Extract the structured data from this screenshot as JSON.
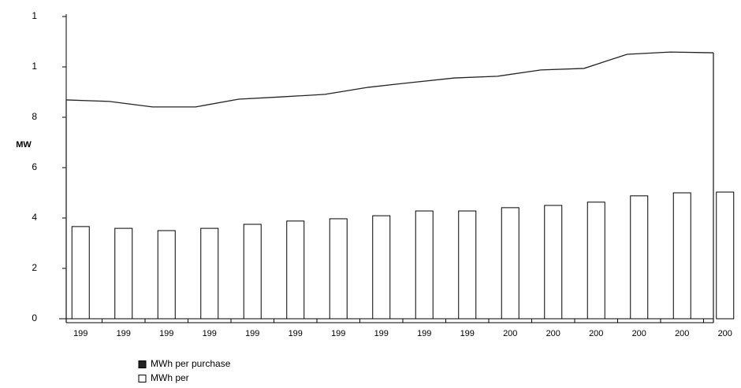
{
  "chart_data": {
    "type": "combo",
    "y_label": "MW",
    "categories": [
      "199",
      "199",
      "199",
      "199",
      "199",
      "199",
      "199",
      "199",
      "199",
      "199",
      "200",
      "200",
      "200",
      "200",
      "200",
      "200"
    ],
    "series": [
      {
        "name": "MWh per purchase",
        "type": "line",
        "color": "#222222",
        "values": [
          8.69,
          8.63,
          8.41,
          8.41,
          8.72,
          8.81,
          8.91,
          9.19,
          9.38,
          9.56,
          9.63,
          9.88,
          9.94,
          10.5,
          10.59,
          10.56
        ]
      },
      {
        "name": "MWh per",
        "type": "bar",
        "color": "#ffffff",
        "values": [
          3.66,
          3.59,
          3.5,
          3.59,
          3.75,
          3.88,
          3.97,
          4.09,
          4.28,
          4.28,
          4.41,
          4.5,
          4.63,
          4.88,
          5.0,
          5.03
        ]
      }
    ],
    "ylim": [
      0,
      12
    ],
    "yticks": [
      0,
      2,
      4,
      6,
      8,
      {
        "value": 10,
        "label": "1"
      },
      {
        "value": 12,
        "label": "1"
      }
    ]
  }
}
